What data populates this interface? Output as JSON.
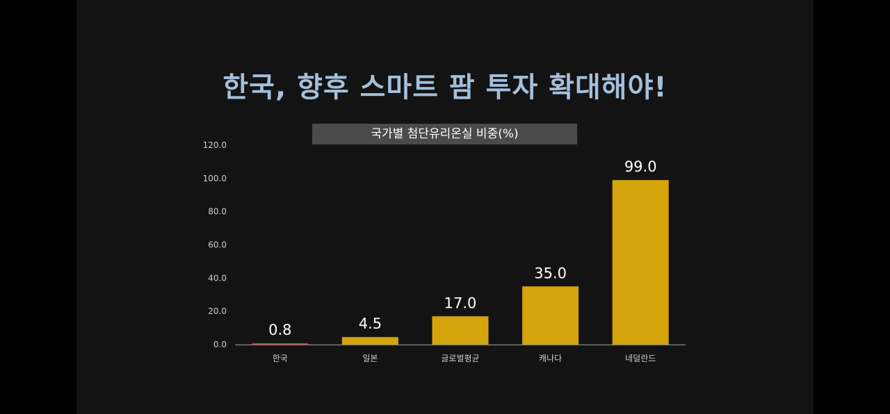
{
  "slide": {
    "title": "한국, 향후 스마트 팜 투자 확대해야!"
  },
  "chart_data": {
    "type": "bar",
    "title": "국가별 첨단유리온실 비중(%)",
    "categories": [
      "한국",
      "일본",
      "글로벌평균",
      "캐나다",
      "네덜란드"
    ],
    "values": [
      0.8,
      4.5,
      17.0,
      35.0,
      99.0
    ],
    "value_labels": [
      "0.8",
      "4.5",
      "17.0",
      "35.0",
      "99.0"
    ],
    "ylim": [
      0,
      120
    ],
    "yticks": [
      "0.0",
      "20.0",
      "40.0",
      "60.0",
      "80.0",
      "100.0",
      "120.0"
    ],
    "grid": false,
    "bar_colors": [
      "#c0392b",
      "#d4a50a",
      "#d4a50a",
      "#d4a50a",
      "#d4a50a"
    ]
  }
}
